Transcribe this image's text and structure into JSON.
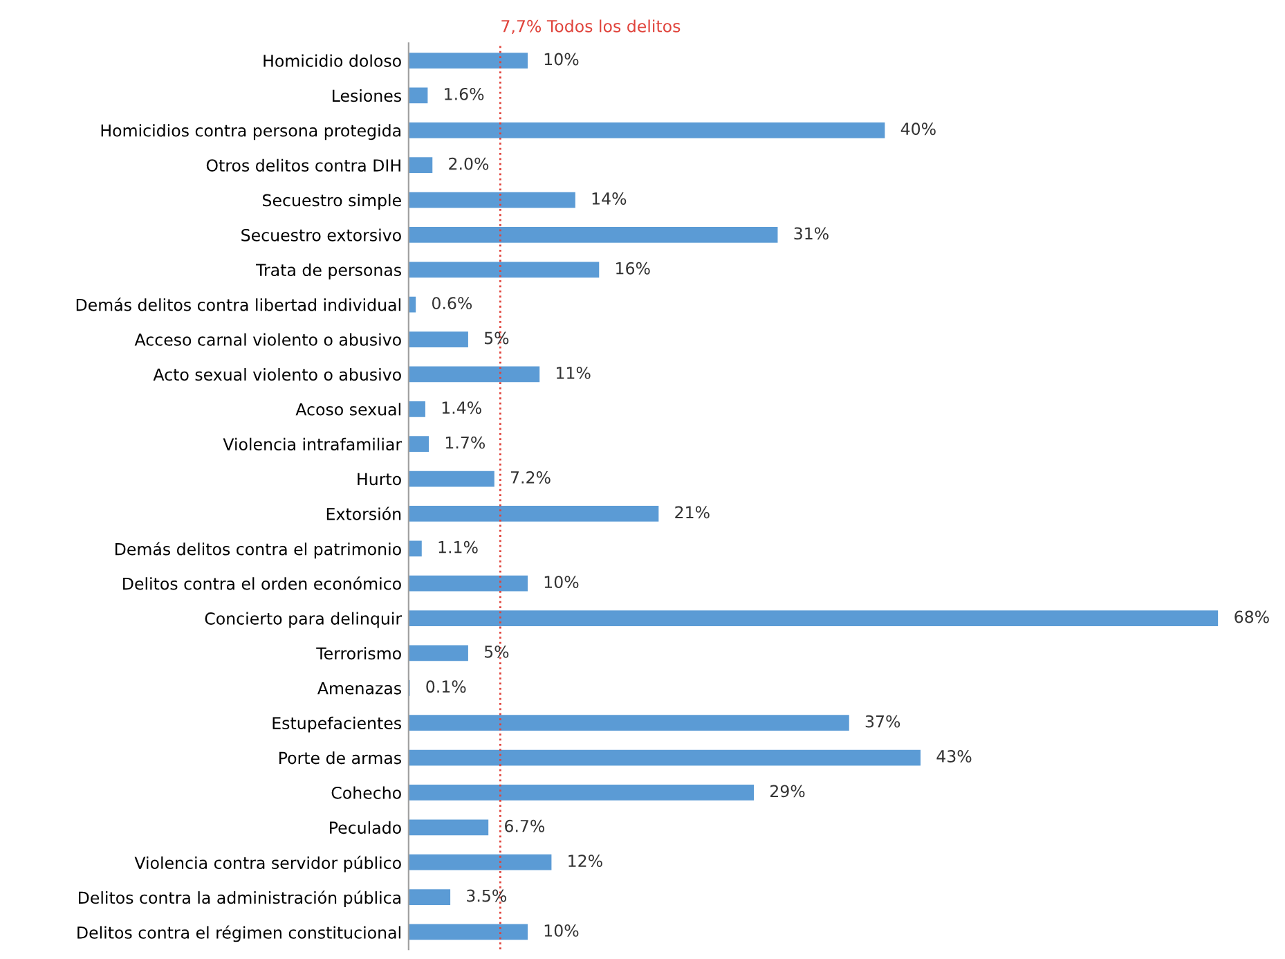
{
  "chart_data": {
    "type": "bar",
    "orientation": "horizontal",
    "categories": [
      "Homicidio doloso",
      "Lesiones",
      "Homicidios contra persona protegida",
      "Otros delitos contra DIH",
      "Secuestro simple",
      "Secuestro extorsivo",
      "Trata de personas",
      "Demás delitos contra libertad individual",
      "Acceso carnal violento o abusivo",
      "Acto sexual violento o abusivo",
      "Acoso sexual",
      "Violencia intrafamiliar",
      "Hurto",
      "Extorsión",
      "Demás delitos contra el patrimonio",
      "Delitos contra el orden económico",
      "Concierto para delinquir",
      "Terrorismo",
      "Amenazas",
      "Estupefacientes",
      "Porte de armas",
      "Cohecho",
      "Peculado",
      "Violencia contra servidor público",
      "Delitos contra la administración pública",
      "Delitos contra el régimen constitucional"
    ],
    "values": [
      10,
      1.6,
      40,
      2.0,
      14,
      31,
      16,
      0.6,
      5,
      11,
      1.4,
      1.7,
      7.2,
      21,
      1.1,
      10,
      68,
      5,
      0.1,
      37,
      43,
      29,
      6.7,
      12,
      3.5,
      10
    ],
    "value_labels": [
      "10%",
      "1.6%",
      "40%",
      "2.0%",
      "14%",
      "31%",
      "16%",
      "0.6%",
      "5%",
      "11%",
      "1.4%",
      "1.7%",
      "7.2%",
      "21%",
      "1.1%",
      "10%",
      "68%",
      "5%",
      "0.1%",
      "37%",
      "43%",
      "29%",
      "6.7%",
      "12%",
      "3.5%",
      "10%"
    ],
    "color": "#5b9bd5",
    "tick_labels": "y",
    "grid": false,
    "legend": false,
    "ref_lines": [
      {
        "axis": "x",
        "value": 7.7,
        "label": "7,7% Todos los delitos",
        "color": "#e0433b",
        "line_style": "dotted"
      }
    ]
  }
}
